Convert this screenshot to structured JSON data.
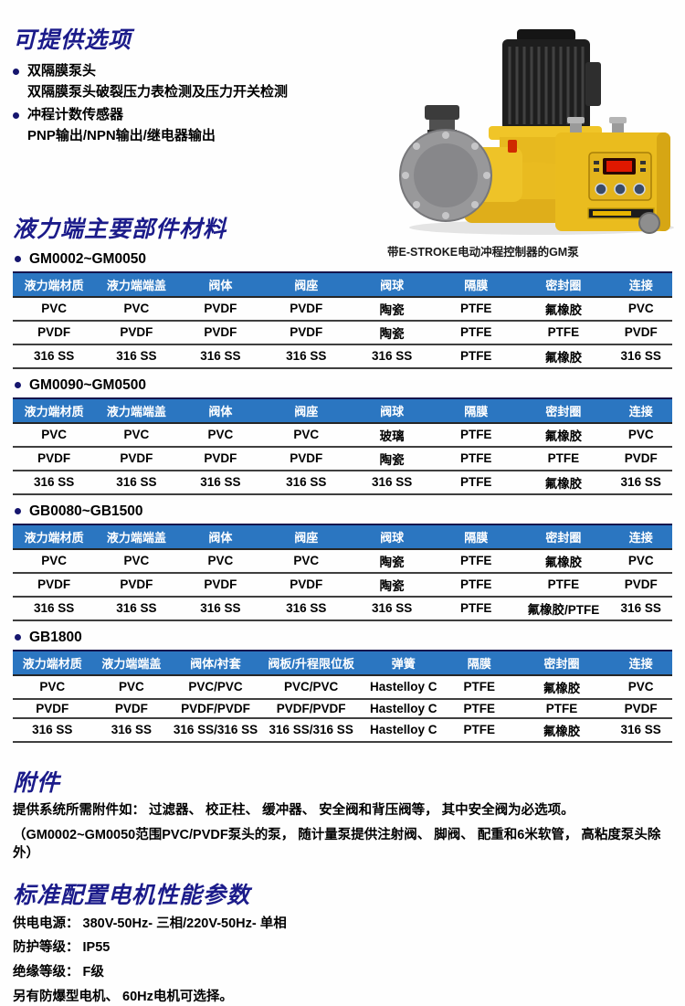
{
  "colors": {
    "heading_navy": "#1b1b8a",
    "table_header_bg": "#2b76c1",
    "table_header_text": "#ffffff",
    "pump_yellow": "#eabc1e",
    "led_red": "#e01800"
  },
  "options_section": {
    "title": "可提供选项",
    "items": [
      {
        "label": "双隔膜泵头",
        "desc": "双隔膜泵头破裂压力表检测及压力开关检测"
      },
      {
        "label": "冲程计数传感器",
        "desc": "PNP输出/NPN输出/继电器输出"
      }
    ]
  },
  "pump_figure": {
    "caption": "带E-STROKE电动冲程控制器的GM泵"
  },
  "materials_section": {
    "title": "液力端主要部件材料",
    "tables": [
      {
        "label": "GM0002~GM0050",
        "headers": [
          "液力端材质",
          "液力端端盖",
          "阀体",
          "阀座",
          "阀球",
          "隔膜",
          "密封圈",
          "连接"
        ],
        "rows": [
          [
            "PVC",
            "PVC",
            "PVDF",
            "PVDF",
            "陶瓷",
            "PTFE",
            "氟橡胶",
            "PVC"
          ],
          [
            "PVDF",
            "PVDF",
            "PVDF",
            "PVDF",
            "陶瓷",
            "PTFE",
            "PTFE",
            "PVDF"
          ],
          [
            "316 SS",
            "316 SS",
            "316 SS",
            "316 SS",
            "316 SS",
            "PTFE",
            "氟橡胶",
            "316 SS"
          ]
        ]
      },
      {
        "label": "GM0090~GM0500",
        "headers": [
          "液力端材质",
          "液力端端盖",
          "阀体",
          "阀座",
          "阀球",
          "隔膜",
          "密封圈",
          "连接"
        ],
        "rows": [
          [
            "PVC",
            "PVC",
            "PVC",
            "PVC",
            "玻璃",
            "PTFE",
            "氟橡胶",
            "PVC"
          ],
          [
            "PVDF",
            "PVDF",
            "PVDF",
            "PVDF",
            "陶瓷",
            "PTFE",
            "PTFE",
            "PVDF"
          ],
          [
            "316 SS",
            "316 SS",
            "316 SS",
            "316 SS",
            "316 SS",
            "PTFE",
            "氟橡胶",
            "316 SS"
          ]
        ]
      },
      {
        "label": "GB0080~GB1500",
        "headers": [
          "液力端材质",
          "液力端端盖",
          "阀体",
          "阀座",
          "阀球",
          "隔膜",
          "密封圈",
          "连接"
        ],
        "rows": [
          [
            "PVC",
            "PVC",
            "PVC",
            "PVC",
            "陶瓷",
            "PTFE",
            "氟橡胶",
            "PVC"
          ],
          [
            "PVDF",
            "PVDF",
            "PVDF",
            "PVDF",
            "陶瓷",
            "PTFE",
            "PTFE",
            "PVDF"
          ],
          [
            "316 SS",
            "316 SS",
            "316 SS",
            "316 SS",
            "316 SS",
            "PTFE",
            "氟橡胶/PTFE",
            "316 SS"
          ]
        ]
      },
      {
        "label": "GB1800",
        "headers": [
          "液力端材质",
          "液力端端盖",
          "阀体/衬套",
          "阀板/升程限位板",
          "弹簧",
          "隔膜",
          "密封圈",
          "连接"
        ],
        "rows": [
          [
            "PVC",
            "PVC",
            "PVC/PVC",
            "PVC/PVC",
            "Hastelloy C",
            "PTFE",
            "氟橡胶",
            "PVC"
          ],
          [
            "PVDF",
            "PVDF",
            "PVDF/PVDF",
            "PVDF/PVDF",
            "Hastelloy C",
            "PTFE",
            "PTFE",
            "PVDF"
          ],
          [
            "316 SS",
            "316 SS",
            "316 SS/316 SS",
            "316 SS/316 SS",
            "Hastelloy C",
            "PTFE",
            "氟橡胶",
            "316 SS"
          ]
        ]
      }
    ]
  },
  "accessories_section": {
    "title": "附件",
    "lines": [
      "提供系统所需附件如： 过滤器、 校正柱、 缓冲器、 安全阀和背压阀等， 其中安全阀为必选项。",
      "（GM0002~GM0050范围PVC/PVDF泵头的泵， 随计量泵提供注射阀、 脚阀、 配重和6米软管， 高粘度泵头除外）"
    ]
  },
  "motor_section": {
    "title": "标准配置电机性能参数",
    "lines": [
      "供电电源： 380V-50Hz- 三相/220V-50Hz- 单相",
      "防护等级： IP55",
      "绝缘等级： F级",
      "另有防爆型电机、 60Hz电机可选择。"
    ]
  }
}
